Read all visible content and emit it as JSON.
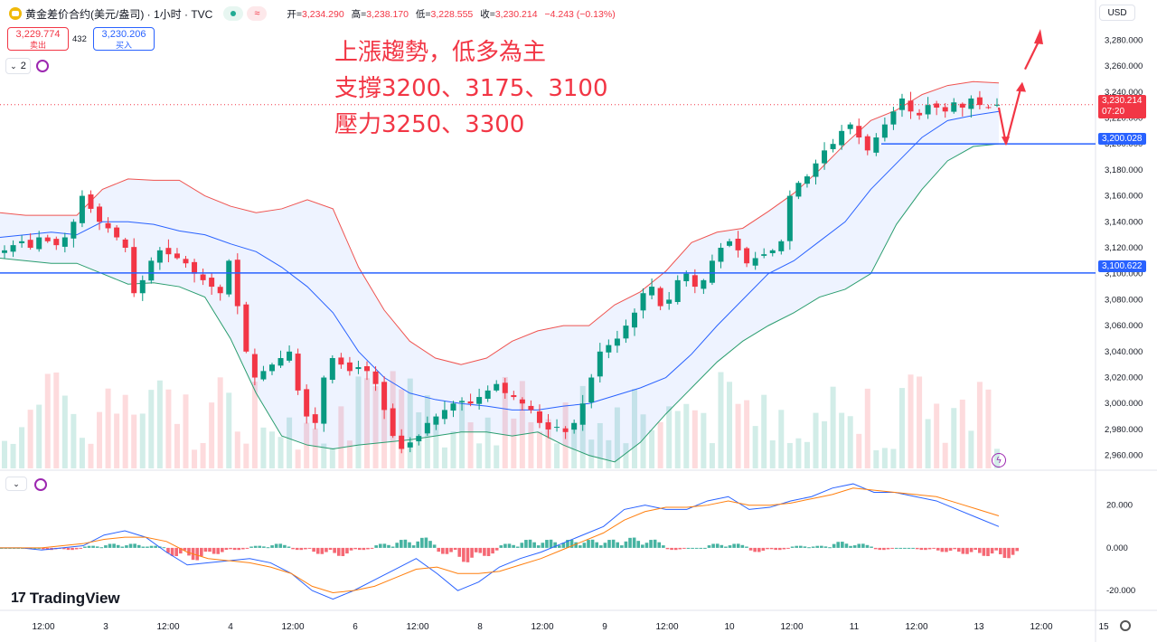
{
  "header": {
    "symbol": "黄金差价合约(美元/盎司) · 1小时 · TVC",
    "open_label": "开",
    "open": "3,234.290",
    "high_label": "高",
    "high": "3,238.170",
    "low_label": "低",
    "low": "3,228.555",
    "close_label": "收",
    "close": "3,230.214",
    "change": "−4.243 (−0.13%)",
    "wave_icon": "≈"
  },
  "trade": {
    "sell_price": "3,229.774",
    "sell_label": "卖出",
    "spread": "432",
    "buy_price": "3,230.206",
    "buy_label": "买入"
  },
  "indicator_count": "2",
  "currency": "USD",
  "annotation": [
    "上漲趨勢，低多為主",
    "支撐3200、3175、3100",
    "壓力3250、3300"
  ],
  "price_labels": {
    "last": "3,230.214",
    "countdown": "07:20",
    "support1": "3,200.028",
    "support2": "3,100.622"
  },
  "brand": "TradingView",
  "colors": {
    "up": "#089981",
    "down": "#f23645",
    "line": "#2962ff",
    "upper_band": "#ef5350",
    "lower_band": "#2a9d6f",
    "macd": "#2962ff",
    "signal": "#ff7f0e"
  },
  "chart_data": {
    "type": "candlestick",
    "timeframe": "1h",
    "y_ticks": [
      "3,280.000",
      "3,260.000",
      "3,240.000",
      "3,220.000",
      "3,200.000",
      "3,180.000",
      "3,160.000",
      "3,140.000",
      "3,120.000",
      "3,100.000",
      "3,080.000",
      "3,060.000",
      "3,040.000",
      "3,020.000",
      "3,000.000",
      "2,980.000",
      "2,960.000"
    ],
    "ylim": [
      2950,
      3290
    ],
    "x_ticks": [
      "12:00",
      "3",
      "12:00",
      "4",
      "12:00",
      "6",
      "12:00",
      "8",
      "12:00",
      "9",
      "12:00",
      "10",
      "12:00",
      "11",
      "12:00",
      "13",
      "12:00",
      "15"
    ],
    "horizontal_lines": [
      3200.028,
      3100.622
    ],
    "close_path": [
      3118,
      3122,
      3125,
      3120,
      3128,
      3125,
      3122,
      3128,
      3140,
      3160,
      3150,
      3140,
      3135,
      3128,
      3120,
      3085,
      3095,
      3110,
      3118,
      3115,
      3112,
      3108,
      3100,
      3095,
      3090,
      3085,
      3110,
      3075,
      3040,
      3020,
      3025,
      3030,
      3035,
      3040,
      3010,
      2990,
      2985,
      3020,
      3035,
      3030,
      3025,
      3028,
      3025,
      3015,
      2995,
      2975,
      2965,
      2970,
      2975,
      2985,
      2990,
      2995,
      3000,
      3002,
      3000,
      3005,
      3010,
      3015,
      3008,
      3005,
      3000,
      2995,
      2985,
      2980,
      2982,
      2978,
      2985,
      3000,
      3020,
      3040,
      3045,
      3050,
      3060,
      3070,
      3085,
      3090,
      3075,
      3080,
      3095,
      3100,
      3090,
      3095,
      3110,
      3120,
      3125,
      3118,
      3108,
      3112,
      3115,
      3118,
      3125,
      3160,
      3170,
      3175,
      3185,
      3195,
      3200,
      3210,
      3215,
      3205,
      3195,
      3205,
      3215,
      3225,
      3235,
      3225,
      3222,
      3230,
      3228,
      3225,
      3232,
      3228,
      3235,
      3230,
      3228,
      3230.214
    ],
    "bollinger_upper": [
      3147,
      3145,
      3145,
      3145,
      3165,
      3173,
      3172,
      3172,
      3160,
      3152,
      3147,
      3150,
      3157,
      3150,
      3105,
      3072,
      3048,
      3035,
      3030,
      3035,
      3048,
      3056,
      3060,
      3060,
      3076,
      3086,
      3102,
      3124,
      3132,
      3135,
      3148,
      3162,
      3180,
      3200,
      3218,
      3226,
      3238,
      3245,
      3248,
      3247
    ],
    "bollinger_mid": [
      3128,
      3130,
      3132,
      3130,
      3140,
      3140,
      3138,
      3133,
      3130,
      3123,
      3117,
      3105,
      3090,
      3070,
      3040,
      3020,
      3008,
      3003,
      3000,
      2998,
      2995,
      2995,
      2998,
      3000,
      3006,
      3012,
      3020,
      3038,
      3060,
      3080,
      3100,
      3110,
      3125,
      3140,
      3165,
      3185,
      3205,
      3218,
      3222,
      3225
    ],
    "bollinger_lower": [
      3112,
      3110,
      3108,
      3108,
      3100,
      3092,
      3093,
      3090,
      3082,
      3050,
      3008,
      2975,
      2968,
      2965,
      2968,
      2970,
      2972,
      2975,
      2978,
      2978,
      2975,
      2978,
      2968,
      2960,
      2955,
      2970,
      2992,
      3012,
      3032,
      3048,
      3060,
      3070,
      3082,
      3088,
      3100,
      3138,
      3165,
      3187,
      3198,
      3200
    ],
    "volume_pane": true,
    "macd": {
      "ylim": [
        -28,
        33
      ],
      "y_ticks": [
        "20.000",
        "0.000",
        "-20.000"
      ],
      "macd_line": [
        0,
        0,
        -1,
        0,
        1,
        6,
        8,
        5,
        -2,
        -8,
        -7,
        -6,
        -5,
        -7,
        -12,
        -20,
        -24,
        -20,
        -15,
        -10,
        -5,
        -12,
        -20,
        -16,
        -9,
        -5,
        -2,
        2,
        6,
        10,
        18,
        20,
        18,
        18,
        22,
        24,
        18,
        19,
        22,
        24,
        28,
        30,
        26,
        26,
        24,
        22,
        18,
        14,
        10
      ],
      "signal_line": [
        0,
        0,
        0,
        1,
        2,
        4,
        5,
        5,
        3,
        -2,
        -5,
        -6,
        -7,
        -9,
        -12,
        -18,
        -21,
        -20,
        -18,
        -14,
        -10,
        -9,
        -12,
        -12,
        -11,
        -8,
        -5,
        -1,
        3,
        7,
        13,
        17,
        19,
        19,
        20,
        22,
        20,
        20,
        21,
        23,
        25,
        28,
        27,
        26,
        25,
        24,
        21,
        18,
        15
      ],
      "histogram": [
        0,
        0,
        -1,
        -1,
        1,
        2,
        2,
        1,
        -4,
        -6,
        -3,
        -1,
        1,
        2,
        -1,
        -3,
        -4,
        -1,
        2,
        4,
        5,
        -3,
        -7,
        -4,
        2,
        4,
        4,
        4,
        4,
        4,
        5,
        4,
        -1,
        0,
        2,
        2,
        -2,
        -1,
        1,
        1,
        3,
        2,
        -1,
        0,
        -1,
        -2,
        -3,
        -4,
        -5
      ]
    }
  }
}
